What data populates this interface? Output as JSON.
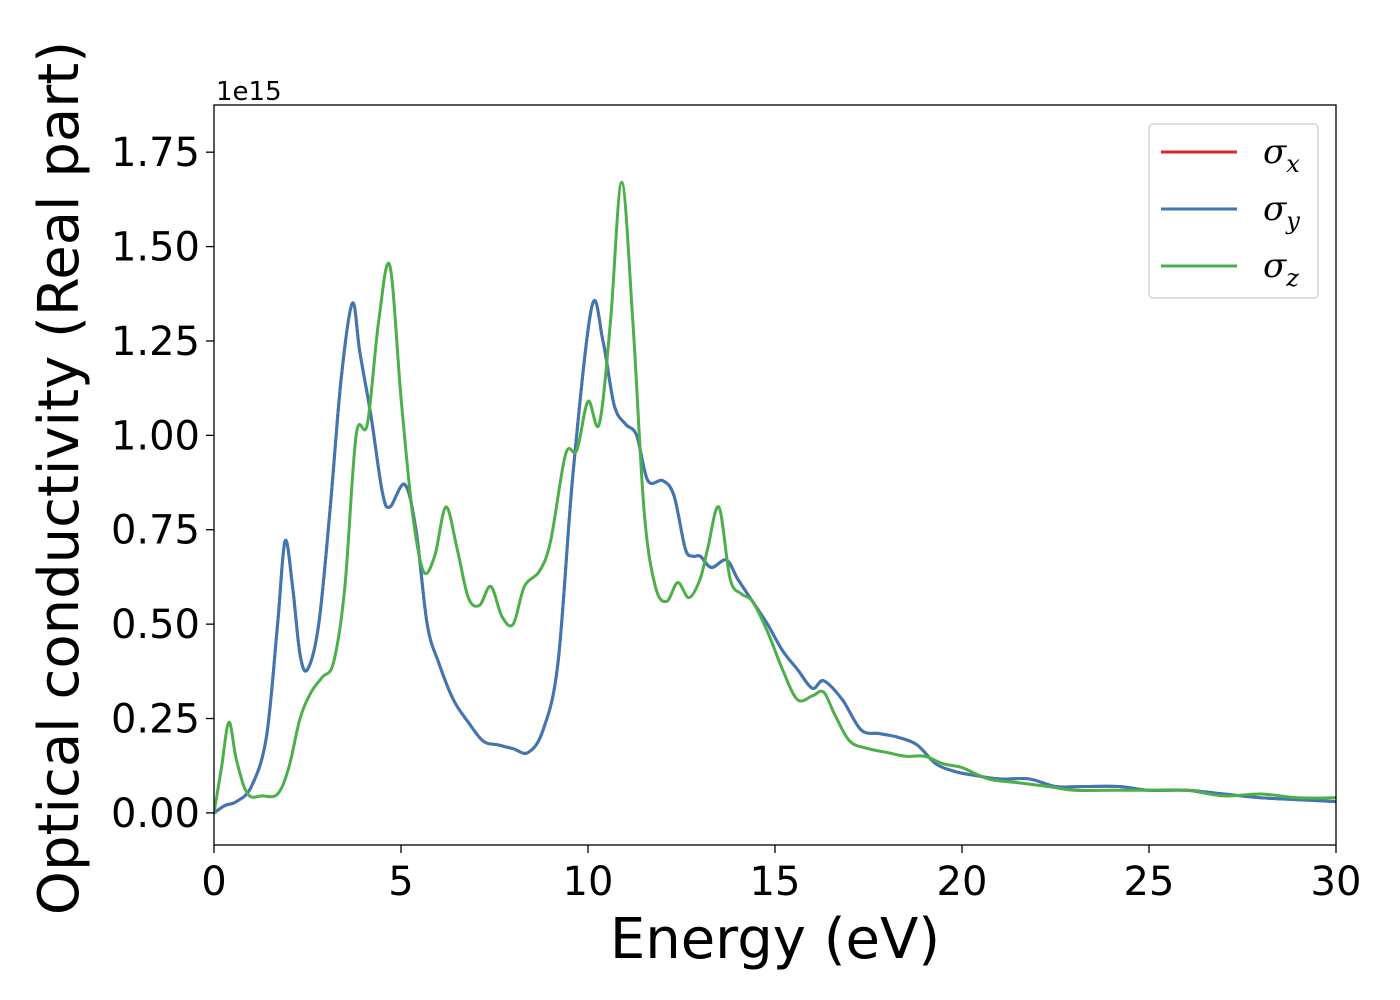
{
  "chart_data": {
    "type": "line",
    "title": "",
    "xlabel": "Energy (eV)",
    "ylabel": "Optical conductivity (Real part)",
    "y_offset_label": "1e15",
    "xlim": [
      0,
      30
    ],
    "ylim": [
      -0.085,
      1.875
    ],
    "xticks": [
      0,
      5,
      10,
      15,
      20,
      25,
      30
    ],
    "yticks": [
      0.0,
      0.25,
      0.5,
      0.75,
      1.0,
      1.25,
      1.5,
      1.75
    ],
    "xtick_labels": [
      "0",
      "5",
      "10",
      "15",
      "20",
      "25",
      "30"
    ],
    "ytick_labels": [
      "0.00",
      "0.25",
      "0.50",
      "0.75",
      "1.00",
      "1.25",
      "1.50",
      "1.75"
    ],
    "grid": false,
    "legend_position": "top-right",
    "series": [
      {
        "name": "σx",
        "symbol": "σ",
        "subscript": "x",
        "color": "#d62728",
        "x": [
          0,
          0.3,
          0.6,
          1.0,
          1.4,
          1.7,
          1.9,
          2.1,
          2.3,
          2.5,
          2.8,
          3.1,
          3.4,
          3.7,
          3.9,
          4.2,
          4.5,
          4.7,
          5.1,
          5.4,
          5.7,
          6.0,
          6.4,
          6.8,
          7.2,
          7.6,
          8.0,
          8.4,
          8.8,
          9.2,
          9.6,
          10.1,
          10.4,
          10.7,
          11.0,
          11.3,
          11.6,
          12.0,
          12.3,
          12.6,
          12.8,
          13.0,
          13.3,
          13.7,
          14.0,
          14.4,
          14.8,
          15.2,
          15.6,
          16.0,
          16.3,
          16.8,
          17.3,
          17.8,
          18.3,
          18.8,
          19.3,
          19.8,
          20.3,
          21.0,
          21.8,
          22.5,
          23.3,
          24.2,
          25.0,
          26.0,
          27.0,
          28.0,
          29.0,
          30.0
        ],
        "y": [
          0.0,
          0.02,
          0.03,
          0.07,
          0.2,
          0.5,
          0.72,
          0.6,
          0.42,
          0.38,
          0.5,
          0.8,
          1.15,
          1.35,
          1.22,
          1.05,
          0.85,
          0.81,
          0.87,
          0.75,
          0.5,
          0.4,
          0.3,
          0.24,
          0.19,
          0.18,
          0.17,
          0.16,
          0.22,
          0.4,
          0.9,
          1.34,
          1.25,
          1.08,
          1.03,
          1.0,
          0.88,
          0.88,
          0.84,
          0.7,
          0.68,
          0.68,
          0.65,
          0.67,
          0.62,
          0.56,
          0.5,
          0.43,
          0.38,
          0.33,
          0.35,
          0.3,
          0.22,
          0.21,
          0.2,
          0.18,
          0.13,
          0.11,
          0.1,
          0.09,
          0.09,
          0.07,
          0.07,
          0.07,
          0.06,
          0.06,
          0.05,
          0.04,
          0.035,
          0.03
        ]
      },
      {
        "name": "σy",
        "symbol": "σ",
        "subscript": "y",
        "color": "#3d78b4",
        "x": [
          0,
          0.3,
          0.6,
          1.0,
          1.4,
          1.7,
          1.9,
          2.1,
          2.3,
          2.5,
          2.8,
          3.1,
          3.4,
          3.7,
          3.9,
          4.2,
          4.5,
          4.7,
          5.1,
          5.4,
          5.7,
          6.0,
          6.4,
          6.8,
          7.2,
          7.6,
          8.0,
          8.4,
          8.8,
          9.2,
          9.6,
          10.1,
          10.4,
          10.7,
          11.0,
          11.3,
          11.6,
          12.0,
          12.3,
          12.6,
          12.8,
          13.0,
          13.3,
          13.7,
          14.0,
          14.4,
          14.8,
          15.2,
          15.6,
          16.0,
          16.3,
          16.8,
          17.3,
          17.8,
          18.3,
          18.8,
          19.3,
          19.8,
          20.3,
          21.0,
          21.8,
          22.5,
          23.3,
          24.2,
          25.0,
          26.0,
          27.0,
          28.0,
          29.0,
          30.0
        ],
        "y": [
          0.0,
          0.02,
          0.03,
          0.07,
          0.2,
          0.5,
          0.72,
          0.6,
          0.42,
          0.38,
          0.5,
          0.8,
          1.15,
          1.35,
          1.22,
          1.05,
          0.85,
          0.81,
          0.87,
          0.75,
          0.5,
          0.4,
          0.3,
          0.24,
          0.19,
          0.18,
          0.17,
          0.16,
          0.22,
          0.4,
          0.9,
          1.34,
          1.25,
          1.08,
          1.03,
          1.0,
          0.88,
          0.88,
          0.84,
          0.7,
          0.68,
          0.68,
          0.65,
          0.67,
          0.62,
          0.56,
          0.5,
          0.43,
          0.38,
          0.33,
          0.35,
          0.3,
          0.22,
          0.21,
          0.2,
          0.18,
          0.13,
          0.11,
          0.1,
          0.09,
          0.09,
          0.07,
          0.07,
          0.07,
          0.06,
          0.06,
          0.05,
          0.04,
          0.035,
          0.03
        ]
      },
      {
        "name": "σz",
        "symbol": "σ",
        "subscript": "z",
        "color": "#4daf4a",
        "x": [
          0,
          0.2,
          0.4,
          0.6,
          0.9,
          1.3,
          1.7,
          2.0,
          2.3,
          2.6,
          2.9,
          3.2,
          3.5,
          3.8,
          4.1,
          4.4,
          4.7,
          5.0,
          5.3,
          5.6,
          5.9,
          6.2,
          6.5,
          6.8,
          7.1,
          7.4,
          7.7,
          8.0,
          8.3,
          8.7,
          9.0,
          9.4,
          9.7,
          10.0,
          10.3,
          10.6,
          10.9,
          11.2,
          11.5,
          11.8,
          12.1,
          12.4,
          12.7,
          13.0,
          13.2,
          13.5,
          13.8,
          14.1,
          14.4,
          14.8,
          15.2,
          15.6,
          16.0,
          16.3,
          16.6,
          17.0,
          17.5,
          18.0,
          18.5,
          19.0,
          19.5,
          20.0,
          20.7,
          21.5,
          22.3,
          23.0,
          24.0,
          25.0,
          26.0,
          27.0,
          28.0,
          29.0,
          30.0
        ],
        "y": [
          0.0,
          0.12,
          0.24,
          0.14,
          0.05,
          0.045,
          0.05,
          0.12,
          0.25,
          0.32,
          0.36,
          0.4,
          0.6,
          1.0,
          1.03,
          1.3,
          1.45,
          1.1,
          0.8,
          0.64,
          0.68,
          0.81,
          0.7,
          0.57,
          0.55,
          0.6,
          0.52,
          0.5,
          0.6,
          0.64,
          0.72,
          0.95,
          0.96,
          1.09,
          1.03,
          1.3,
          1.67,
          1.3,
          0.8,
          0.6,
          0.56,
          0.61,
          0.57,
          0.62,
          0.7,
          0.81,
          0.62,
          0.58,
          0.56,
          0.48,
          0.38,
          0.3,
          0.31,
          0.32,
          0.26,
          0.19,
          0.17,
          0.16,
          0.15,
          0.15,
          0.13,
          0.12,
          0.09,
          0.08,
          0.07,
          0.06,
          0.06,
          0.06,
          0.06,
          0.045,
          0.05,
          0.04,
          0.04
        ]
      }
    ]
  }
}
